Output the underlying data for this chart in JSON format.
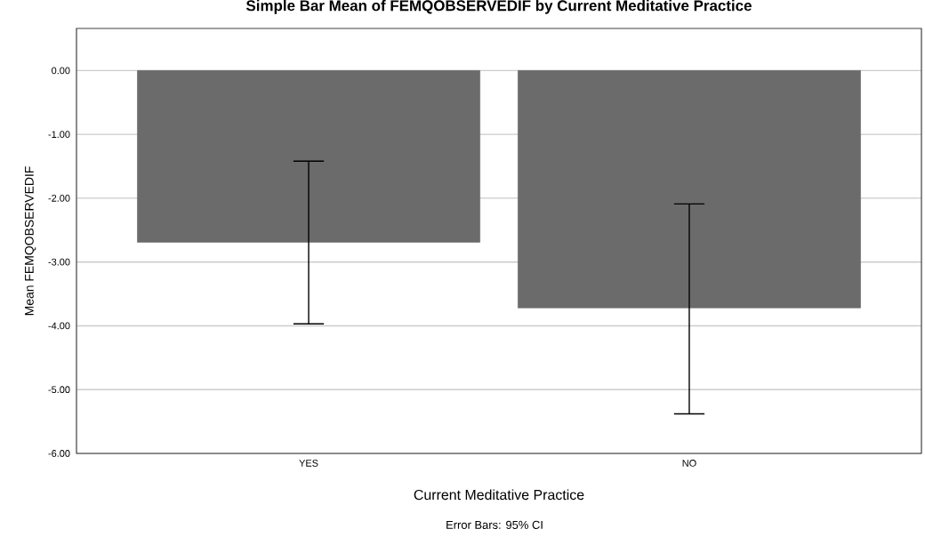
{
  "chart_data": {
    "type": "bar",
    "title": "Simple Bar Mean of FEMQOBSERVEDIF by Current Meditative Practice",
    "xlabel": "Current Meditative Practice",
    "ylabel": "Mean FEMQOBSERVEDIF",
    "categories": [
      "YES",
      "NO"
    ],
    "values": [
      -2.69,
      -3.72
    ],
    "color": "#6b6b6b",
    "errors": [
      [
        -3.97,
        -1.42
      ],
      [
        -5.38,
        -2.09
      ]
    ],
    "ylim": [
      -6,
      0.66
    ],
    "yticks": [
      {
        "value": -6,
        "label": "-6.00"
      },
      {
        "value": -5,
        "label": "-5.00"
      },
      {
        "value": -4,
        "label": "-4.00"
      },
      {
        "value": -3,
        "label": "-3.00"
      },
      {
        "value": -2,
        "label": "-2.00"
      },
      {
        "value": -1,
        "label": "-1.00"
      },
      {
        "value": 0,
        "label": "0.00"
      }
    ],
    "grid": "y",
    "annotations": [
      "Error Bars: 95% CI"
    ]
  }
}
